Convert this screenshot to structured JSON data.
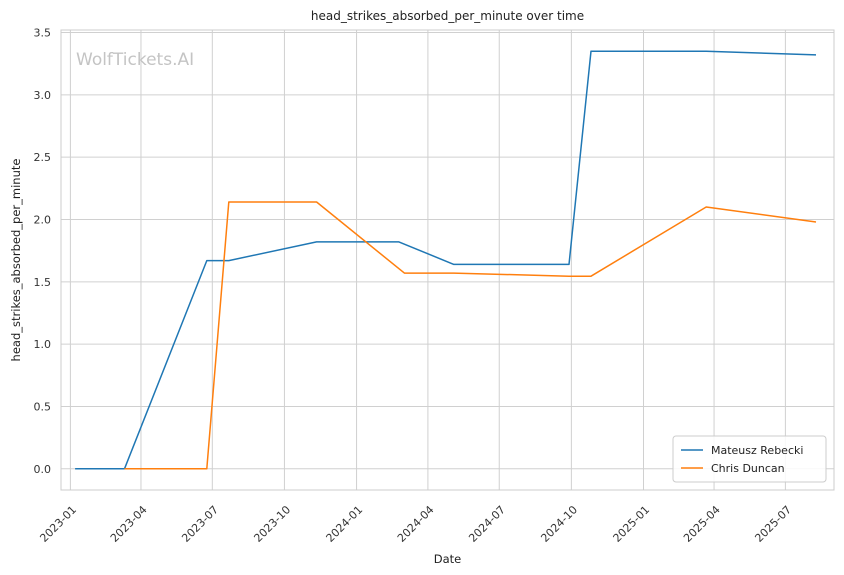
{
  "chart_data": {
    "type": "line",
    "title": "head_strikes_absorbed_per_minute over time",
    "xlabel": "Date",
    "ylabel": "head_strikes_absorbed_per_minute",
    "watermark": "WolfTickets.AI",
    "x_ticks": [
      "2023-01",
      "2023-04",
      "2023-07",
      "2023-10",
      "2024-01",
      "2024-04",
      "2024-07",
      "2024-10",
      "2025-01",
      "2025-04",
      "2025-07"
    ],
    "y_ticks": [
      "0.0",
      "0.5",
      "1.0",
      "1.5",
      "2.0",
      "2.5",
      "3.0",
      "3.5"
    ],
    "xlim": [
      "2022-12-20",
      "2025-09-01"
    ],
    "ylim": [
      -0.17,
      3.52
    ],
    "grid": true,
    "legend_position": "bottom-right",
    "series": [
      {
        "name": "Mateusz Rebecki",
        "color": "#1f77b4",
        "points": [
          {
            "x": "2023-01-07",
            "y": 0.0
          },
          {
            "x": "2023-03-11",
            "y": 0.0
          },
          {
            "x": "2023-06-24",
            "y": 1.67
          },
          {
            "x": "2023-07-22",
            "y": 1.67
          },
          {
            "x": "2023-11-11",
            "y": 1.82
          },
          {
            "x": "2024-02-24",
            "y": 1.82
          },
          {
            "x": "2024-05-04",
            "y": 1.64
          },
          {
            "x": "2024-09-28",
            "y": 1.64
          },
          {
            "x": "2024-10-26",
            "y": 3.35
          },
          {
            "x": "2025-03-22",
            "y": 3.35
          },
          {
            "x": "2025-08-09",
            "y": 3.32
          }
        ]
      },
      {
        "name": "Chris Duncan",
        "color": "#ff7f0e",
        "points": [
          {
            "x": "2023-03-11",
            "y": 0.0
          },
          {
            "x": "2023-06-24",
            "y": 0.0
          },
          {
            "x": "2023-07-22",
            "y": 2.14
          },
          {
            "x": "2023-11-11",
            "y": 2.14
          },
          {
            "x": "2024-03-02",
            "y": 1.57
          },
          {
            "x": "2024-05-04",
            "y": 1.57
          },
          {
            "x": "2024-09-28",
            "y": 1.545
          },
          {
            "x": "2024-10-26",
            "y": 1.545
          },
          {
            "x": "2025-03-22",
            "y": 2.1
          },
          {
            "x": "2025-08-09",
            "y": 1.98
          }
        ]
      }
    ]
  }
}
